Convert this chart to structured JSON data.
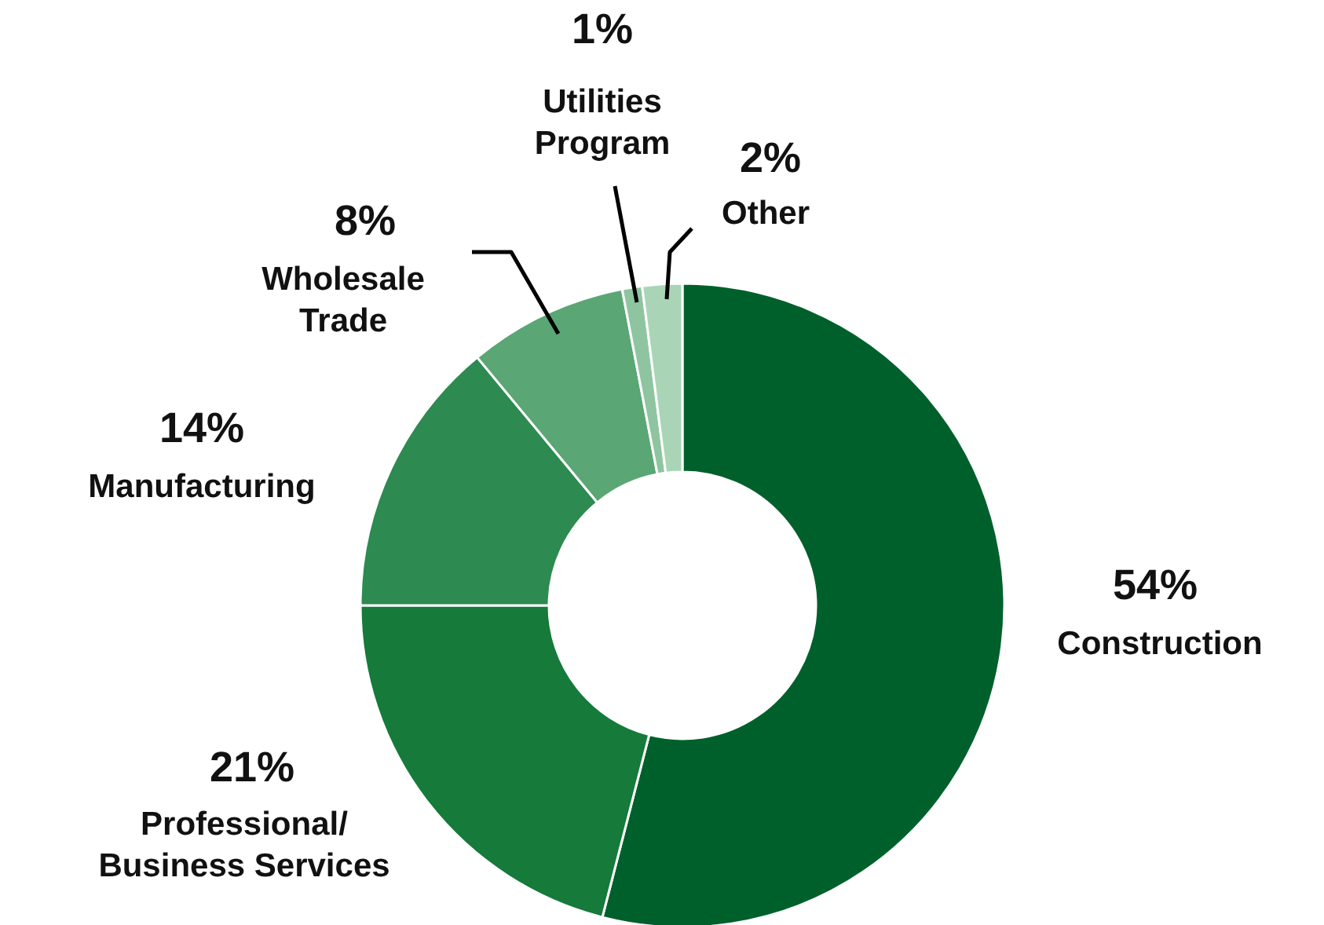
{
  "chart_data": {
    "type": "donut",
    "categories": [
      "Construction",
      "Professional/\nBusiness Services",
      "Manufacturing",
      "Wholesale\nTrade",
      "Utilities\nProgram",
      "Other"
    ],
    "values": [
      54,
      21,
      14,
      8,
      1,
      2
    ],
    "value_labels": [
      "54%",
      "21%",
      "14%",
      "8%",
      "1%",
      "2%"
    ],
    "colors": [
      "#00602b",
      "#157a3a",
      "#2d8a50",
      "#5aa674",
      "#8ec5a0",
      "#a9d5b6"
    ]
  }
}
